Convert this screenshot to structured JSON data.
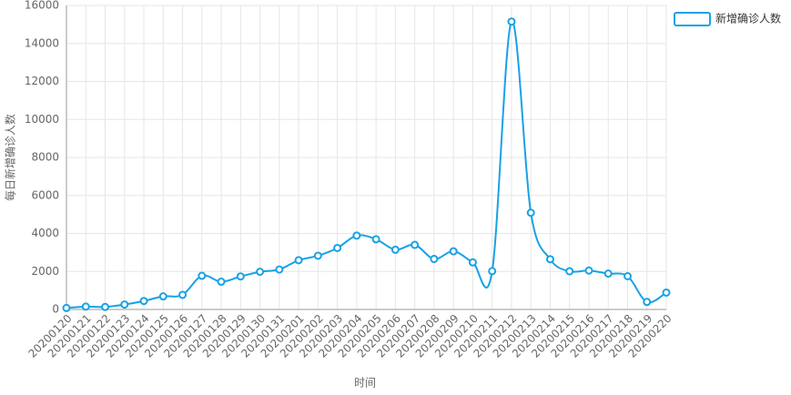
{
  "chart_data": {
    "type": "line",
    "x_label": "时间",
    "y_label": "每日新增确诊人数",
    "categories": [
      "20200120",
      "20200121",
      "20200122",
      "20200123",
      "20200124",
      "20200125",
      "20200126",
      "20200127",
      "20200128",
      "20200129",
      "20200130",
      "20200131",
      "20200201",
      "20200202",
      "20200203",
      "20200204",
      "20200205",
      "20200206",
      "20200207",
      "20200208",
      "20200209",
      "20200210",
      "20200211",
      "20200212",
      "20200213",
      "20200214",
      "20200215",
      "20200216",
      "20200217",
      "20200218",
      "20200219",
      "20200220"
    ],
    "series": [
      {
        "name": "新增确诊人数",
        "color": "#17a2e6",
        "values": [
          77,
          149,
          131,
          259,
          444,
          688,
          769,
          1771,
          1459,
          1737,
          1982,
          2102,
          2590,
          2829,
          3235,
          3887,
          3694,
          3143,
          3399,
          2656,
          3062,
          2478,
          2015,
          15152,
          5090,
          2641,
          2009,
          2048,
          1886,
          1749,
          394,
          889
        ]
      }
    ],
    "ylim": [
      0,
      16000
    ],
    "yticks": [
      0,
      2000,
      4000,
      6000,
      8000,
      10000,
      12000,
      14000,
      16000
    ],
    "grid": true,
    "legend": "top-right"
  }
}
